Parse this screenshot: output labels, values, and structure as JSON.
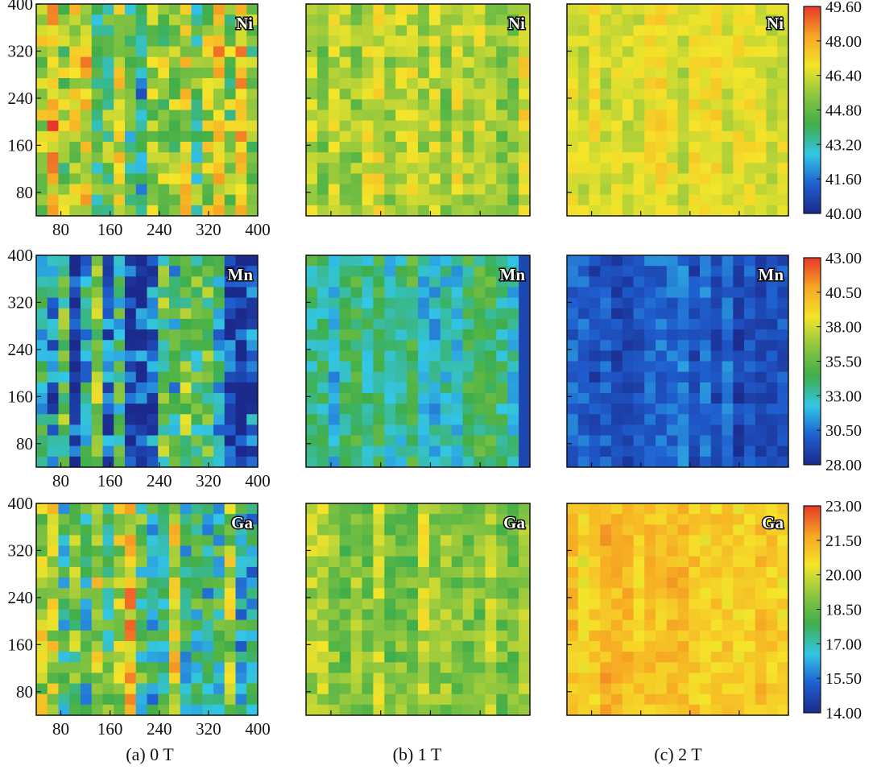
{
  "chart_data": {
    "type": "heatmap",
    "title": "",
    "columns": [
      "(a) 0 T",
      "(b) 1 T",
      "(c) 2 T"
    ],
    "x_ticks": [
      "80",
      "160",
      "240",
      "320",
      "400"
    ],
    "y_ticks": [
      "400",
      "320",
      "240",
      "160",
      "80"
    ],
    "axis_range": [
      40,
      400
    ],
    "rows": [
      {
        "element": "Ni",
        "colorbar_ticks": [
          "49.60",
          "48.00",
          "46.40",
          "44.80",
          "43.20",
          "41.60",
          "40.00"
        ],
        "range": [
          40.0,
          49.6
        ],
        "panel_mean_levels": [
          0.55,
          0.62,
          0.68
        ]
      },
      {
        "element": "Mn",
        "colorbar_ticks": [
          "43.00",
          "40.50",
          "38.00",
          "35.50",
          "33.00",
          "30.50",
          "28.00"
        ],
        "range": [
          28.0,
          43.0
        ],
        "panel_mean_levels": [
          0.28,
          0.36,
          0.12
        ]
      },
      {
        "element": "Ga",
        "colorbar_ticks": [
          "23.00",
          "21.50",
          "20.00",
          "18.50",
          "17.00",
          "15.50",
          "14.00"
        ],
        "range": [
          14.0,
          23.0
        ],
        "panel_mean_levels": [
          0.55,
          0.58,
          0.78
        ]
      }
    ]
  },
  "colors": {
    "map_scale": [
      "#1b2a8c",
      "#1f5fd0",
      "#33c6e6",
      "#3fae4a",
      "#8cc63f",
      "#f5e52a",
      "#f6a623",
      "#e8382a"
    ],
    "frame": "#111111"
  }
}
